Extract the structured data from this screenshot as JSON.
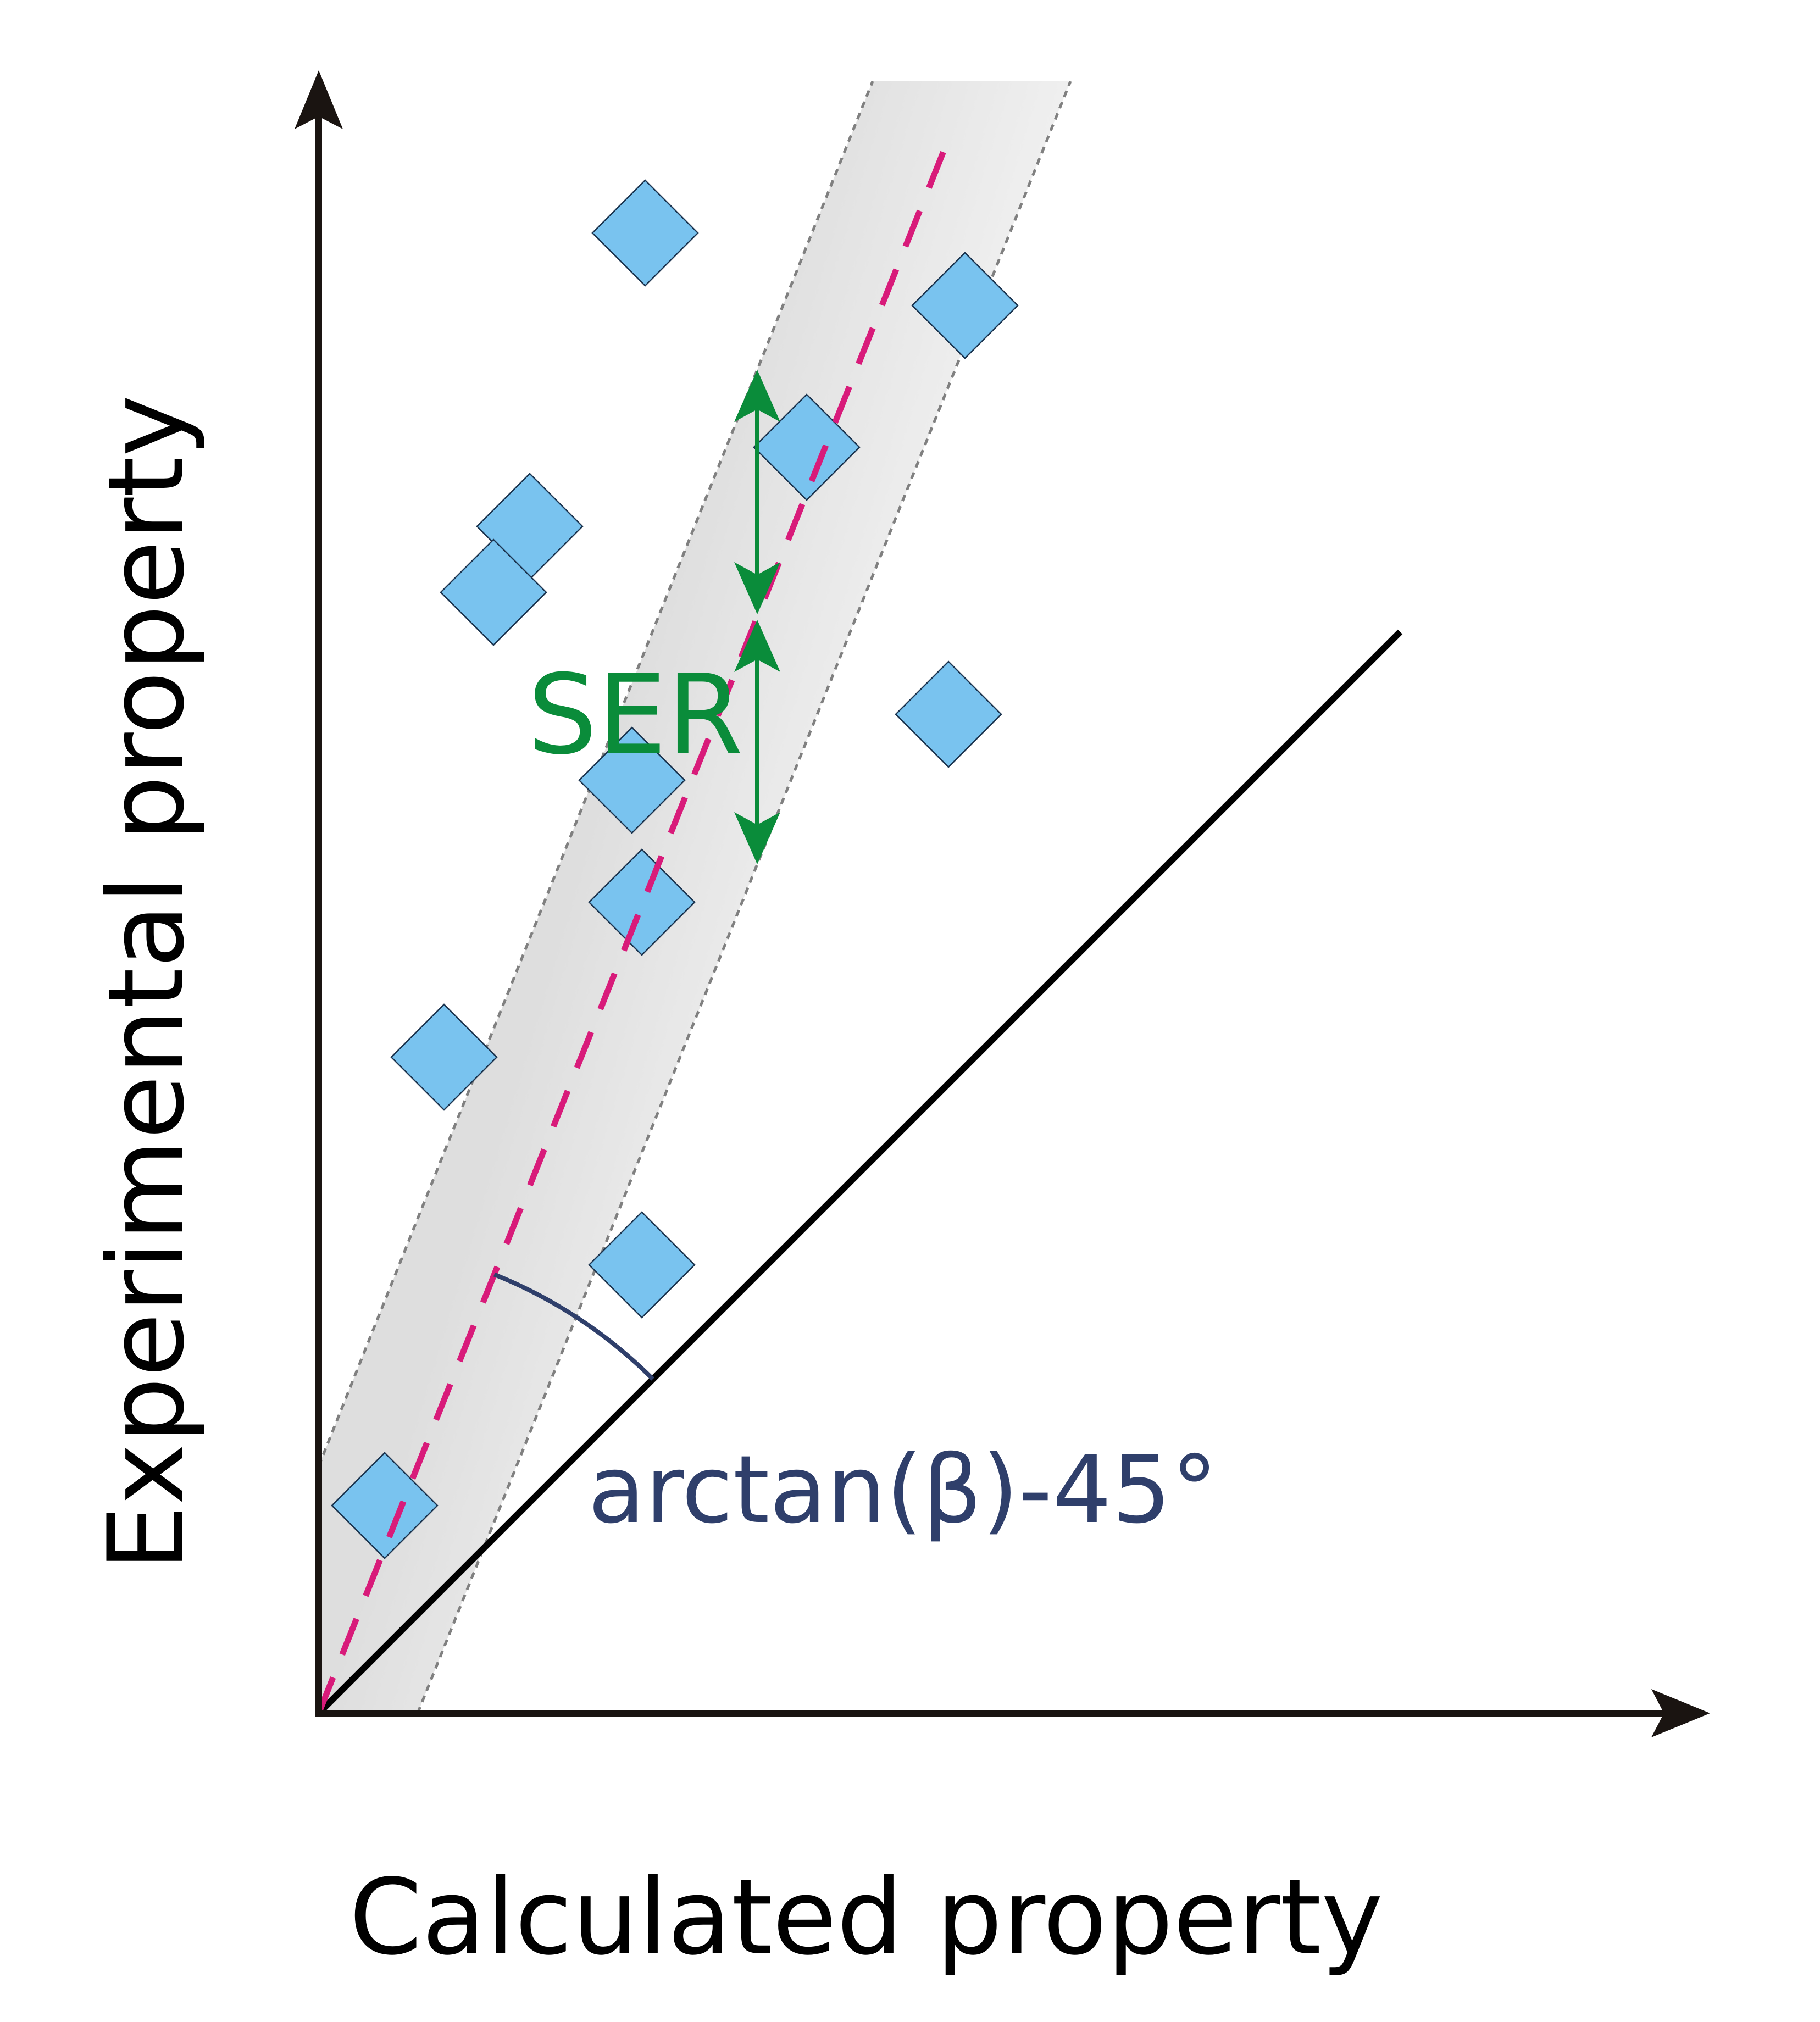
{
  "labels": {
    "x_axis": "Calculated property",
    "y_axis": "Experimental property",
    "ser": "SER",
    "angle": "arctan(β)-45°"
  },
  "colors": {
    "axis": "#1a1411",
    "diagonal": "#000000",
    "fit_line": "#d81b7a",
    "band_fill": "#e6e6e6",
    "band_edge": "#808080",
    "marker_fill": "#79c3ef",
    "marker_stroke": "#1c3550",
    "ser_arrow": "#0a8c3a",
    "angle": "#2f3f6b"
  },
  "chart_data": {
    "type": "scatter",
    "points": [
      {
        "x": 0.2,
        "y": 0.63
      },
      {
        "x": 0.64,
        "y": 3.6
      },
      {
        "x": 0.98,
        "y": 1.36
      },
      {
        "x": 0.98,
        "y": 2.46
      },
      {
        "x": 0.38,
        "y": 1.99
      },
      {
        "x": 0.53,
        "y": 3.4
      },
      {
        "x": 0.95,
        "y": 2.83
      },
      {
        "x": 1.48,
        "y": 3.84
      },
      {
        "x": 1.96,
        "y": 4.27
      },
      {
        "x": 0.99,
        "y": 4.49
      },
      {
        "x": 1.91,
        "y": 3.03
      }
    ],
    "identity_line": {
      "slope": 1,
      "intercept": 0
    },
    "regression_line": {
      "slope": 2.5,
      "intercept": 0
    },
    "ser_band": {
      "offset": 0.75
    },
    "xlim": [
      0,
      3.0
    ],
    "ylim": [
      0,
      4.95
    ]
  }
}
